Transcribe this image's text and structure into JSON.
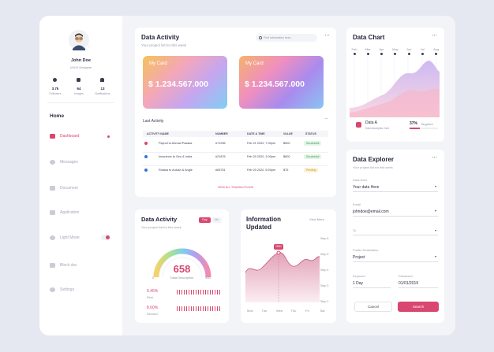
{
  "sidebar": {
    "profile": {
      "name": "John Doe",
      "role": "UI/UX Designer"
    },
    "stats": [
      {
        "value": "3.7k",
        "label": "Followers"
      },
      {
        "value": "64",
        "label": "Images"
      },
      {
        "value": "13",
        "label": "Notifications"
      }
    ],
    "section": "Home",
    "menu": [
      "Dashboard",
      "Messages",
      "Document",
      "Application",
      "Light Mode",
      "Block doc",
      "Settings"
    ]
  },
  "activity": {
    "title": "Data Activity",
    "subtitle": "Your project list for this week",
    "search": "Find information here...",
    "cards": [
      {
        "label": "My Card",
        "amount": "$ 1.234.567.000"
      },
      {
        "label": "My Card",
        "amount": "$ 1.234.567.000"
      }
    ],
    "last_activity": "Last Activity",
    "table": {
      "headers": [
        "ACTIVITY NAME",
        "NUMBER",
        "DATE & TIME",
        "VALUE",
        "STATUS"
      ],
      "rows": [
        [
          "Payroll to Ahmad Pasaka",
          "#71936",
          "Feb 21 2020, 7:00pm",
          "$500",
          "Successful"
        ],
        [
          "Insurance to Geo & Indra",
          "#21876",
          "Feb 20 2020, 3:00pm",
          "$600",
          "Successful"
        ],
        [
          "Rotasa to Aulush & Angle",
          "#83751",
          "Feb 20 2020, 5:00pm",
          "$75",
          "Pending"
        ]
      ]
    },
    "view_all": "VIEW ALL TRANSACTIONS"
  },
  "gauge": {
    "title": "Data Activity",
    "subtitle": "Your project list for this week",
    "tabs": [
      "Day",
      "Mo"
    ],
    "value": "658",
    "label": "Data Description",
    "min": "0",
    "max": "900",
    "items": [
      {
        "value": "6.45%",
        "label": "First"
      },
      {
        "value": "8.60%",
        "label": "Second"
      }
    ]
  },
  "info": {
    "title": "Information Updated",
    "link": "View More",
    "tooltip": "1651",
    "steps": [
      "Step 6",
      "Step 5",
      "Step 4",
      "Step 3",
      "Step 2"
    ],
    "days": [
      "Mon",
      "Tue",
      "Wed",
      "Thu",
      "Fri",
      "Sat"
    ]
  },
  "data_chart": {
    "title": "Data Chart",
    "months": [
      "Feb",
      "Mar",
      "Apr",
      "May",
      "Jun",
      "Jul",
      "Aug"
    ],
    "legend": "Data A",
    "note": "Data description here",
    "percent": "37%",
    "target": "Targeted"
  },
  "explorer": {
    "title": "Data Explorer",
    "subtitle": "Your project list for this week",
    "fields": [
      {
        "label": "Data Here",
        "value": "Your data Here"
      },
      {
        "label": "Email",
        "value": "johndoe@email.com"
      },
      {
        "label": "To"
      },
      {
        "label": "Folder Destination",
        "value": "Project"
      },
      {
        "label": "Keyword",
        "value": "1 Day"
      },
      {
        "label": "Password",
        "value": "01/01/2019"
      }
    ],
    "buttons": [
      "Cancel",
      "Search"
    ]
  }
}
